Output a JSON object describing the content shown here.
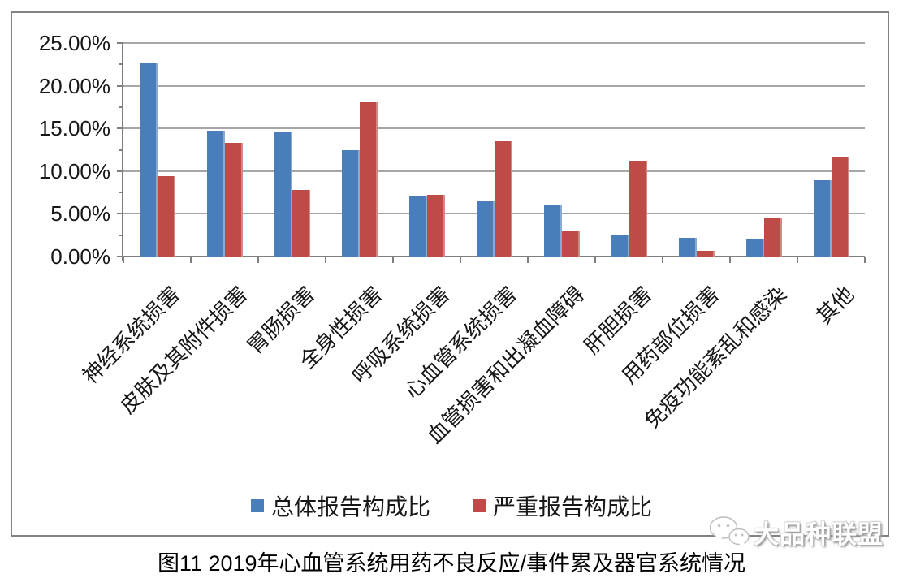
{
  "chart_data": {
    "type": "bar",
    "title": "图11 2019年心血管系统用药不良反应/事件累及器官系统情况",
    "categories": [
      "神经系统损害",
      "皮肤及其附件损害",
      "胃肠损害",
      "全身性损害",
      "呼吸系统损害",
      "心血管系统损害",
      "血管损害和出凝血障碍",
      "肝胆损害",
      "用药部位损害",
      "免疫功能紊乱和感染",
      "其他"
    ],
    "series": [
      {
        "name": "总体报告构成比",
        "color": "#4a7ebb",
        "values": [
          22.6,
          14.7,
          14.5,
          12.5,
          7.0,
          6.6,
          6.1,
          2.6,
          2.2,
          2.1,
          8.9
        ]
      },
      {
        "name": "严重报告构成比",
        "color": "#be4b48",
        "values": [
          9.4,
          13.3,
          7.8,
          18.1,
          7.2,
          13.5,
          3.0,
          11.2,
          0.7,
          4.5,
          11.6
        ]
      }
    ],
    "ylim": [
      0,
      25
    ],
    "yticks": [
      {
        "value": 0,
        "label": "0.00%"
      },
      {
        "value": 5,
        "label": "5.00%"
      },
      {
        "value": 10,
        "label": "10.00%"
      },
      {
        "value": 15,
        "label": "15.00%"
      },
      {
        "value": 20,
        "label": "20.00%"
      },
      {
        "value": 25,
        "label": "25.00%"
      }
    ],
    "grid": "horizontal-major",
    "legend_position": "bottom",
    "xlabel": "",
    "ylabel": ""
  },
  "watermark": {
    "text": "大品种联盟",
    "icon": "wechat-icon"
  },
  "colors": {
    "bar_blue": "#4a7ebb",
    "bar_red": "#be4b48",
    "gridline": "#a6a6a6",
    "axis": "#7f7f7f",
    "frame_border": "#828282",
    "text": "#171717"
  }
}
